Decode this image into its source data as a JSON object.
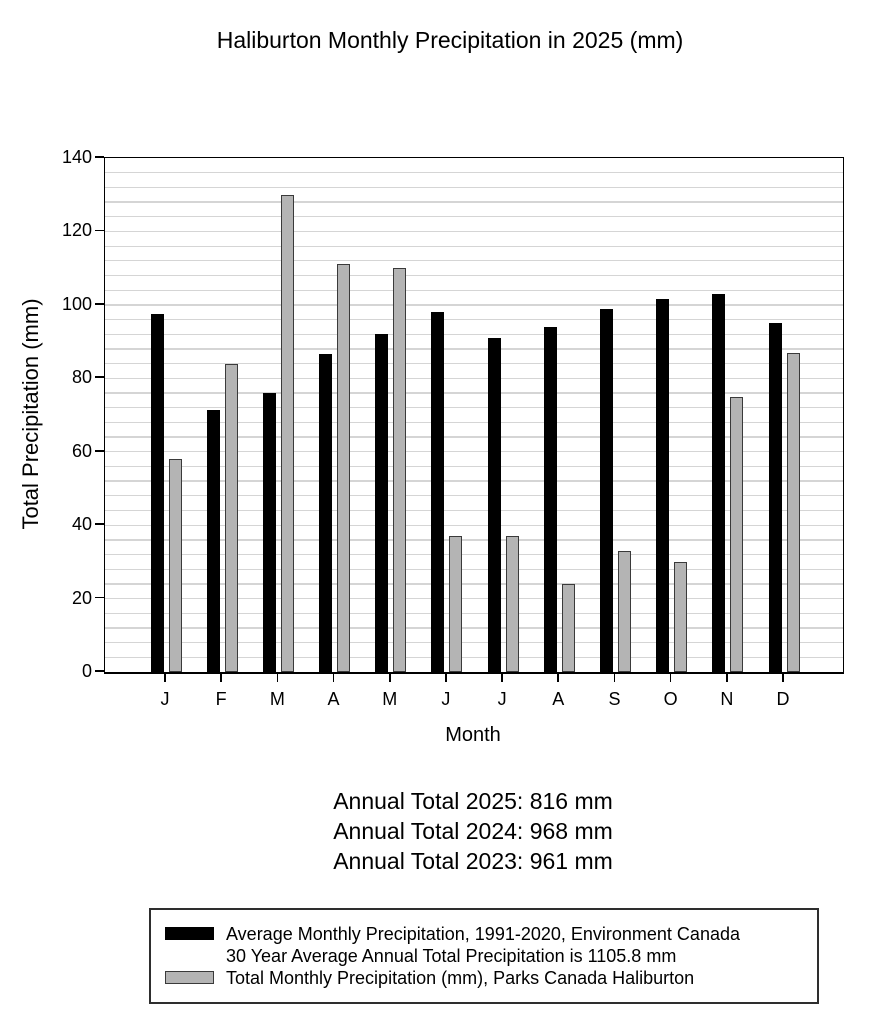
{
  "chart_data": {
    "type": "bar",
    "title": "Haliburton Monthly Precipitation in 2025 (mm)",
    "xlabel": "Month",
    "ylabel": "Total Precipitation (mm)",
    "ylim": [
      0,
      140
    ],
    "y_major_ticks": [
      0,
      20,
      40,
      60,
      80,
      100,
      120,
      140
    ],
    "y_minor_step": 4,
    "grid": "horizontal minor gridlines",
    "legend_position": "boxed legend below chart",
    "categories": [
      "J",
      "F",
      "M",
      "A",
      "M",
      "J",
      "J",
      "A",
      "S",
      "O",
      "N",
      "D"
    ],
    "series": [
      {
        "name": "Average Monthly Precipitation, 1991-2020, Environment Canada",
        "color": "#000000",
        "border_color": "#000000",
        "values": [
          97.5,
          71.5,
          76,
          86.5,
          92,
          98,
          91,
          94,
          99,
          101.5,
          103,
          95
        ]
      },
      {
        "name": "Total Monthly Precipitation (mm), Parks Canada Haliburton",
        "color": "#b4b4b4",
        "border_color": "#3a3a3a",
        "values": [
          58,
          84,
          130,
          111,
          110,
          37,
          37,
          24,
          33,
          30,
          75,
          87
        ]
      }
    ]
  },
  "annotations": [
    "Annual Total 2025: 816 mm",
    "Annual Total 2024: 968 mm",
    "Annual Total 2023: 961 mm"
  ],
  "legend": {
    "average_line1": "Average Monthly Precipitation, 1991-2020, Environment Canada",
    "average_line2": "30 Year Average Annual Total Precipitation is 1105.8 mm",
    "total_line": "Total Monthly Precipitation (mm), Parks Canada Haliburton"
  },
  "colors": {
    "average_bar": "#000000",
    "total_bar": "#b4b4b4",
    "gridline": "#d5d5d5",
    "axis": "#000000"
  }
}
